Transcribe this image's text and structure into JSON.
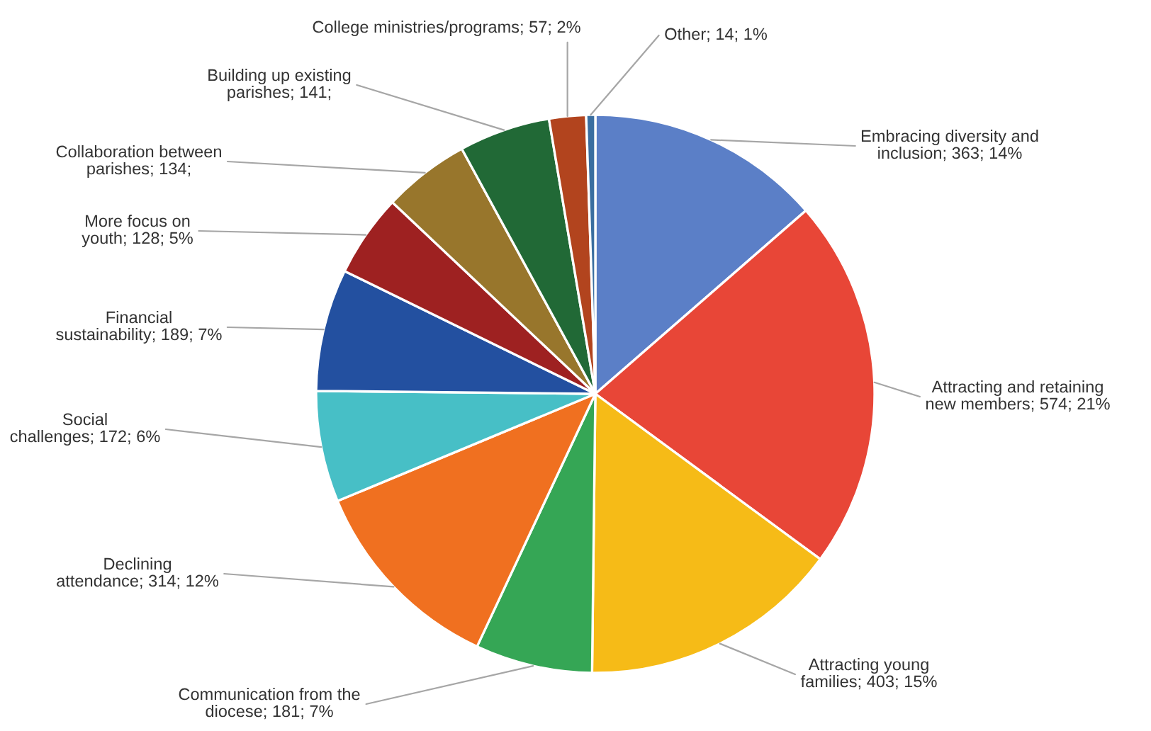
{
  "chart_data": {
    "type": "pie",
    "categories": [
      "Embracing diversity and inclusion",
      "Attracting and retaining new members",
      "Attracting young families",
      "Communication from the diocese",
      "Declining attendance",
      "Social challenges",
      "Financial sustainability",
      "More focus on youth",
      "Collaboration between parishes",
      "Building up existing parishes",
      "College ministries/programs",
      "Other"
    ],
    "values": [
      363,
      574,
      403,
      181,
      314,
      172,
      189,
      128,
      134,
      141,
      57,
      14
    ],
    "value_labels": [
      "363; 14%",
      "574; 21%",
      "403; 15%",
      "181; 7%",
      "314; 12%",
      "172; 6%",
      "189; 7%",
      "128; 5%",
      "134;",
      "141;",
      "57; 2%",
      "14; 1%"
    ],
    "colors": [
      "#5b7fc7",
      "#e84637",
      "#f6bb17",
      "#35a655",
      "#f07020",
      "#47bfc6",
      "#2350a0",
      "#9e2121",
      "#98762c",
      "#216936",
      "#b2441e",
      "#3a6ea0"
    ]
  }
}
